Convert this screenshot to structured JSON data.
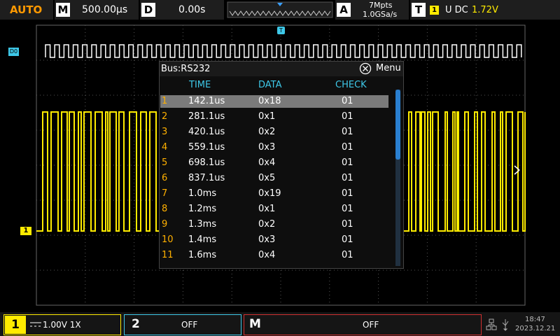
{
  "top_bar": {
    "mode": "AUTO",
    "timebase_label": "M",
    "timebase": "500.00µs",
    "delay_label": "D",
    "delay": "0.00s",
    "acq_label": "A",
    "memory": "7Mpts",
    "sample_rate": "1.0GSa/s",
    "trigger_label": "T",
    "trigger_source": "1",
    "trigger_coupling": "U DC",
    "trigger_level": "1.72V"
  },
  "markers": {
    "digital": "D0",
    "trigger_position": "T",
    "channel": "1"
  },
  "decode_table": {
    "title": "Bus:RS232",
    "menu": "Menu",
    "columns": [
      "TIME",
      "DATA",
      "CHECK"
    ],
    "rows": [
      [
        "1",
        "142.1us",
        "0x18",
        "01"
      ],
      [
        "2",
        "281.1us",
        "0x1",
        "01"
      ],
      [
        "3",
        "420.1us",
        "0x2",
        "01"
      ],
      [
        "4",
        "559.1us",
        "0x3",
        "01"
      ],
      [
        "5",
        "698.1us",
        "0x4",
        "01"
      ],
      [
        "6",
        "837.1us",
        "0x5",
        "01"
      ],
      [
        "7",
        "1.0ms",
        "0x19",
        "01"
      ],
      [
        "8",
        "1.2ms",
        "0x1",
        "01"
      ],
      [
        "9",
        "1.3ms",
        "0x2",
        "01"
      ],
      [
        "10",
        "1.4ms",
        "0x3",
        "01"
      ],
      [
        "11",
        "1.6ms",
        "0x4",
        "01"
      ]
    ]
  },
  "bottom_bar": {
    "channels": [
      {
        "label": "1",
        "status": "1.00V 1X"
      },
      {
        "label": "2",
        "status": "OFF"
      },
      {
        "label": "M",
        "status": "OFF"
      }
    ],
    "time": "18:47",
    "date": "2023.12.21"
  }
}
